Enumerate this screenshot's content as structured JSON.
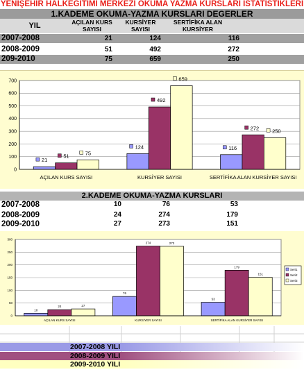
{
  "title": "YENİŞEHİR HALKEGİTİMİ MERKEZİ OKUMA YAZMA KURSLARI İSTATİSTİKLERİ",
  "table1": {
    "title": "1.KADEME OKUMA-YAZMA KURSLARI DEGERLER",
    "headers": {
      "year": "YIL",
      "col1": "AÇILAN KURS SAYISI",
      "col2": "KURSİYER SAYISI",
      "col3": "SERTİFİKA ALAN KURSİYER"
    },
    "rows": [
      {
        "year": "2007-2008",
        "c1": "21",
        "c2": "124",
        "c3": "116"
      },
      {
        "year": "2008-2009",
        "c1": "51",
        "c2": "492",
        "c3": "272"
      },
      {
        "year": "209-2010",
        "c1": "75",
        "c2": "659",
        "c3": "250"
      }
    ]
  },
  "table2": {
    "title": "2.KADEME OKUMA-YAZMA KURSLARI",
    "rows": [
      {
        "year": "2007-2008",
        "c1": "10",
        "c2": "76",
        "c3": "53"
      },
      {
        "year": "2008-2009",
        "c1": "24",
        "c2": "274",
        "c3": "179"
      },
      {
        "year": "2009-2010",
        "c1": "27",
        "c2": "273",
        "c3": "151"
      }
    ]
  },
  "legend_rows": [
    {
      "label": "2007-2008 YILI",
      "color": "#9a9ae6"
    },
    {
      "label": "2008-2009 YILI",
      "color": "#a05080"
    },
    {
      "label": "2009-2010 YILI",
      "color": "#ffffc0"
    }
  ],
  "chart_data": [
    {
      "type": "bar",
      "categories": [
        "AÇILAN KURS SAYISI",
        "KURSİYER SAYISI",
        "SERTİFİKA ALAN KURSİYER SAYISI"
      ],
      "series": [
        {
          "values": [
            21,
            124,
            116
          ],
          "color": "#9999ff"
        },
        {
          "values": [
            51,
            492,
            272
          ],
          "color": "#993366"
        },
        {
          "values": [
            75,
            659,
            250
          ],
          "color": "#ffffcc"
        }
      ],
      "ylim": [
        0,
        700
      ],
      "yticks": [
        0,
        100,
        200,
        300,
        400,
        500,
        600,
        700
      ],
      "grid": true
    },
    {
      "type": "bar",
      "categories": [
        "AÇILAN KURS SAYISI",
        "KURSİYER SAYISI",
        "SERTİFİKA ALAN KURSİYER SAYISI"
      ],
      "series": [
        {
          "name": "Seri1",
          "values": [
            10,
            76,
            53
          ],
          "color": "#9999ff"
        },
        {
          "name": "Seri2",
          "values": [
            24,
            274,
            179
          ],
          "color": "#993366"
        },
        {
          "name": "Seri3",
          "values": [
            27,
            273,
            151
          ],
          "color": "#ffffcc"
        }
      ],
      "ylim": [
        0,
        300
      ],
      "yticks": [
        0,
        50,
        100,
        150,
        200,
        250,
        300
      ],
      "grid": true,
      "legend": "right"
    }
  ]
}
